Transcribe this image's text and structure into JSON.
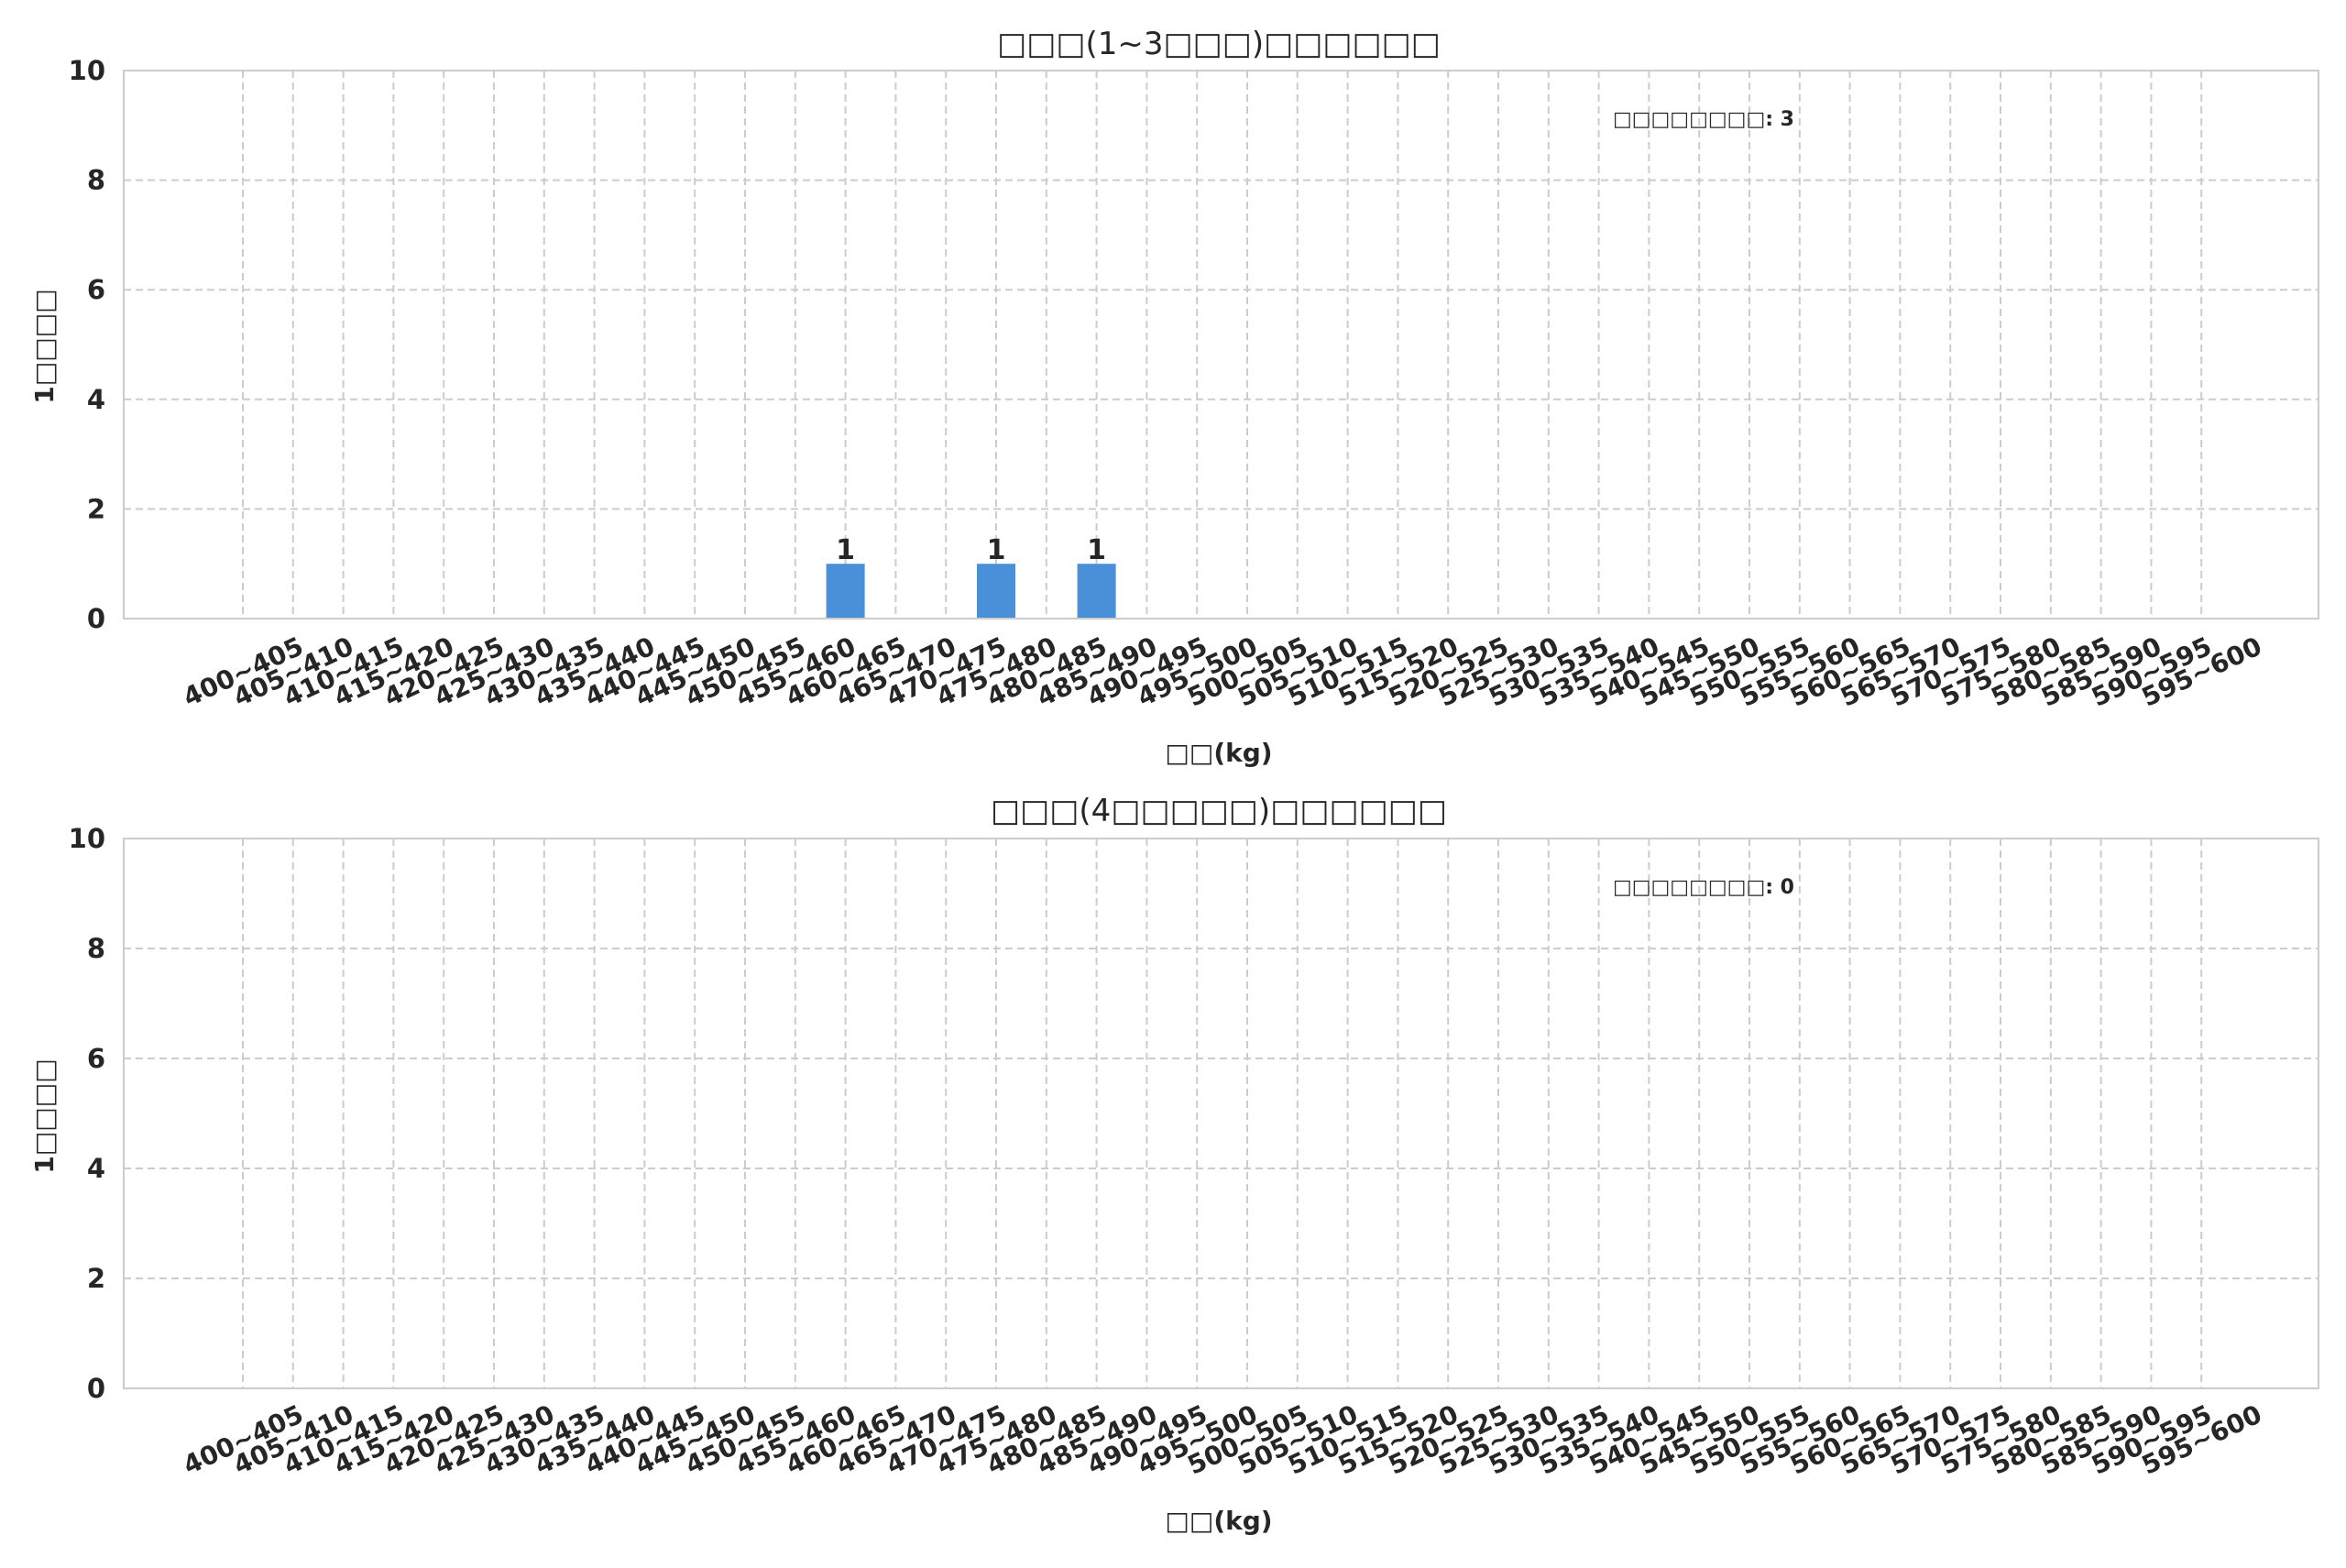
{
  "chart_data": [
    {
      "type": "bar",
      "title": "□□□(1~3□□□)□□□□□□",
      "xlabel": "□□(kg)",
      "ylabel": "1□□□□",
      "ylim": [
        0,
        10
      ],
      "yticks": [
        0,
        2,
        4,
        6,
        8,
        10
      ],
      "grid": true,
      "annotation": "□□□□□□□□: 3",
      "bar_color": "#4a90d9",
      "categories": [
        "400~405",
        "405~410",
        "410~415",
        "415~420",
        "420~425",
        "425~430",
        "430~435",
        "435~440",
        "440~445",
        "445~450",
        "450~455",
        "455~460",
        "460~465",
        "465~470",
        "470~475",
        "475~480",
        "480~485",
        "485~490",
        "490~495",
        "495~500",
        "500~505",
        "505~510",
        "510~515",
        "515~520",
        "520~525",
        "525~530",
        "530~535",
        "535~540",
        "540~545",
        "545~550",
        "550~555",
        "555~560",
        "560~565",
        "565~570",
        "570~575",
        "575~580",
        "580~585",
        "585~590",
        "590~595",
        "595~600"
      ],
      "values": [
        0,
        0,
        0,
        0,
        0,
        0,
        0,
        0,
        0,
        0,
        0,
        0,
        1,
        0,
        0,
        1,
        0,
        1,
        0,
        0,
        0,
        0,
        0,
        0,
        0,
        0,
        0,
        0,
        0,
        0,
        0,
        0,
        0,
        0,
        0,
        0,
        0,
        0,
        0,
        0
      ]
    },
    {
      "type": "bar",
      "title": "□□□(4□□□□□)□□□□□□",
      "xlabel": "□□(kg)",
      "ylabel": "1□□□□",
      "ylim": [
        0,
        10
      ],
      "yticks": [
        0,
        2,
        4,
        6,
        8,
        10
      ],
      "grid": true,
      "annotation": "□□□□□□□□: 0",
      "bar_color": "#4a90d9",
      "categories": [
        "400~405",
        "405~410",
        "410~415",
        "415~420",
        "420~425",
        "425~430",
        "430~435",
        "435~440",
        "440~445",
        "445~450",
        "450~455",
        "455~460",
        "460~465",
        "465~470",
        "470~475",
        "475~480",
        "480~485",
        "485~490",
        "490~495",
        "495~500",
        "500~505",
        "505~510",
        "510~515",
        "515~520",
        "520~525",
        "525~530",
        "530~535",
        "535~540",
        "540~545",
        "545~550",
        "550~555",
        "555~560",
        "560~565",
        "565~570",
        "570~575",
        "575~580",
        "580~585",
        "585~590",
        "590~595",
        "595~600"
      ],
      "values": [
        0,
        0,
        0,
        0,
        0,
        0,
        0,
        0,
        0,
        0,
        0,
        0,
        0,
        0,
        0,
        0,
        0,
        0,
        0,
        0,
        0,
        0,
        0,
        0,
        0,
        0,
        0,
        0,
        0,
        0,
        0,
        0,
        0,
        0,
        0,
        0,
        0,
        0,
        0,
        0
      ]
    }
  ]
}
